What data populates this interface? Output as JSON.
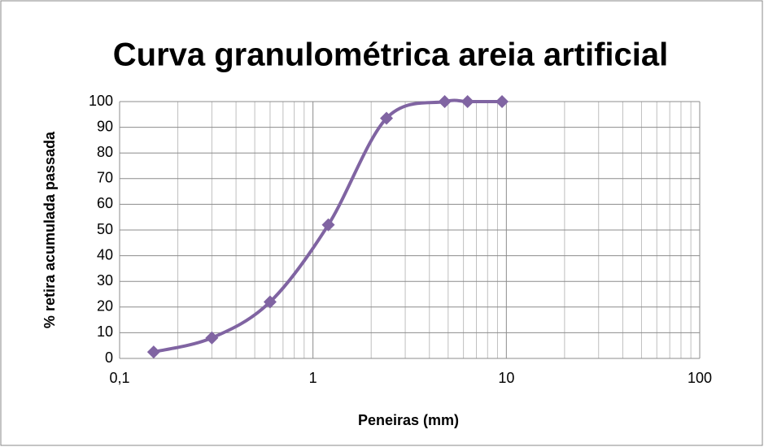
{
  "chart_data": {
    "type": "scatter",
    "title": "Curva granulométrica areia artificial",
    "x_label": "Peneiras (mm)",
    "y_label": "% retira acumulada passada",
    "x": [
      0.15,
      0.3,
      0.6,
      1.2,
      2.4,
      4.8,
      6.3,
      9.5
    ],
    "series": [
      {
        "color": "#8064a2",
        "values": [
          2.5,
          8,
          22,
          52,
          93.5,
          100,
          100,
          100
        ]
      }
    ],
    "x_log": true,
    "xlim": [
      0.1,
      100
    ],
    "xticks": [
      {
        "value": 0.1,
        "label": "0,1"
      },
      1,
      10,
      100
    ],
    "ylim": [
      0,
      100
    ],
    "yticks": [
      0,
      10,
      20,
      30,
      40,
      50,
      60,
      70,
      80,
      90,
      100
    ],
    "grid": true,
    "minor_grid": true,
    "smooth": true
  }
}
